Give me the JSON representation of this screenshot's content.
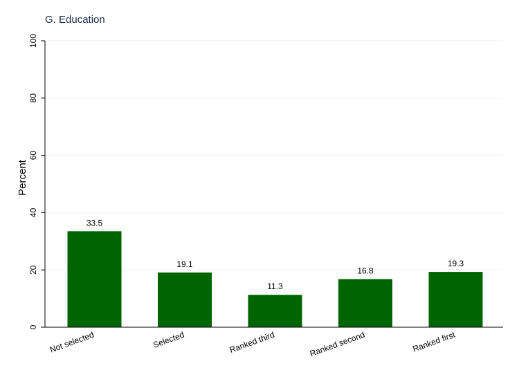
{
  "chart_data": {
    "type": "bar",
    "title": "G. Education",
    "ylabel": "Percent",
    "xlabel": "",
    "categories": [
      "Not selected",
      "Selected",
      "Ranked third",
      "Ranked second",
      "Ranked first"
    ],
    "values": [
      33.5,
      19.1,
      11.3,
      16.8,
      19.3
    ],
    "data_labels": [
      "33.5",
      "19.1",
      "11.3",
      "16.8",
      "19.3"
    ],
    "ylim": [
      0,
      100
    ],
    "yticks": [
      0,
      20,
      40,
      60,
      80,
      100
    ],
    "ytick_labels": [
      "0",
      "20",
      "40",
      "60",
      "80",
      "100"
    ],
    "grid": true,
    "bar_color": "#006400",
    "legend": "none"
  }
}
